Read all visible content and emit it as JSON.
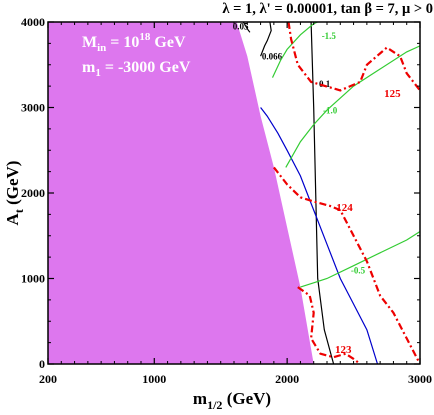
{
  "chart_data": {
    "type": "contour",
    "title": "λ = 1, λ' = 0.00001, tan β = 7, μ > 0",
    "xlabel": "m",
    "xlabel_sub": "1/2",
    "xlabel_unit": " (GeV)",
    "ylabel": "A",
    "ylabel_sub": "t",
    "ylabel_unit": " (GeV)",
    "xlim": [
      200,
      3000
    ],
    "ylim": [
      0,
      4000
    ],
    "x_ticks": [
      200,
      1000,
      2000,
      3000
    ],
    "y_ticks": [
      0,
      1000,
      2000,
      3000,
      4000
    ],
    "x_tick_labels": [
      "200",
      "1000",
      "2000",
      "3000"
    ],
    "y_tick_labels": [
      "0",
      "1000",
      "2000",
      "3000",
      "4000"
    ],
    "annotations": {
      "min_label": "M",
      "min_sub": "in",
      "min_eq": " = 10",
      "min_exp": "18",
      "min_unit": " GeV",
      "m1_label": "m",
      "m1_sub": "1",
      "m1_value": " = -3000 GeV"
    },
    "excluded_region": {
      "color": "#dd77ee",
      "boundary": [
        [
          200,
          0
        ],
        [
          200,
          4000
        ],
        [
          1620,
          4000
        ],
        [
          1700,
          3600
        ],
        [
          1800,
          2900
        ],
        [
          1900,
          2300
        ],
        [
          2000,
          1600
        ],
        [
          2100,
          900
        ],
        [
          2200,
          0
        ]
      ]
    },
    "series": [
      {
        "name": "0.05",
        "label": "0.05",
        "color": "#000000",
        "style": "solid",
        "points": [
          [
            1670,
            4000
          ],
          [
            1700,
            3920
          ],
          [
            1720,
            3880
          ]
        ],
        "label_at": [
          1590,
          3910
        ]
      },
      {
        "name": "0.066",
        "label": "0.066",
        "color": "#000000",
        "style": "solid",
        "points": [
          [
            1870,
            4000
          ],
          [
            1880,
            3900
          ],
          [
            1850,
            3780
          ],
          [
            1830,
            3720
          ],
          [
            1800,
            3600
          ]
        ],
        "label_at": [
          1810,
          3560
        ]
      },
      {
        "name": "0.1",
        "label": "0.1",
        "color": "#000000",
        "style": "solid",
        "points": [
          [
            2180,
            4000
          ],
          [
            2200,
            3000
          ],
          [
            2215,
            2000
          ],
          [
            2230,
            1000
          ],
          [
            2280,
            400
          ],
          [
            2350,
            0
          ]
        ],
        "label_at": [
          2240,
          3240
        ]
      },
      {
        "name": "blue",
        "label": "",
        "color": "#0000cc",
        "style": "solid",
        "points": [
          [
            1800,
            3000
          ],
          [
            1850,
            2900
          ],
          [
            1930,
            2700
          ],
          [
            2000,
            2500
          ],
          [
            2100,
            2200
          ],
          [
            2200,
            1800
          ],
          [
            2300,
            1400
          ],
          [
            2400,
            1000
          ],
          [
            2500,
            700
          ],
          [
            2600,
            400
          ],
          [
            2680,
            0
          ]
        ],
        "label_at": null
      },
      {
        "name": "-1.5",
        "label": "-1.5",
        "color": "#33cc33",
        "style": "solid",
        "points": [
          [
            1890,
            3350
          ],
          [
            1950,
            3550
          ],
          [
            2000,
            3680
          ],
          [
            2100,
            3850
          ],
          [
            2200,
            3980
          ],
          [
            2230,
            4000
          ]
        ],
        "label_at": [
          2260,
          3800
        ]
      },
      {
        "name": "-1.0",
        "label": "-1.0",
        "color": "#33cc33",
        "style": "solid",
        "points": [
          [
            1990,
            2300
          ],
          [
            2100,
            2600
          ],
          [
            2200,
            2800
          ],
          [
            2300,
            2970
          ],
          [
            2500,
            3250
          ],
          [
            2700,
            3450
          ],
          [
            2900,
            3650
          ],
          [
            3000,
            3720
          ]
        ],
        "label_at": [
          2270,
          2930
        ]
      },
      {
        "name": "-0.5",
        "label": "-0.5",
        "color": "#33cc33",
        "style": "solid",
        "points": [
          [
            2100,
            900
          ],
          [
            2200,
            950
          ],
          [
            2300,
            1000
          ],
          [
            2500,
            1150
          ],
          [
            2700,
            1300
          ],
          [
            2900,
            1450
          ],
          [
            3000,
            1550
          ]
        ],
        "label_at": [
          2480,
          1060
        ]
      },
      {
        "name": "125",
        "label": "125",
        "color": "#ee0000",
        "style": "dashdot",
        "points": [
          [
            2010,
            4000
          ],
          [
            2030,
            3800
          ],
          [
            2080,
            3500
          ],
          [
            2180,
            3300
          ],
          [
            2400,
            3200
          ],
          [
            2550,
            3300
          ],
          [
            2600,
            3500
          ],
          [
            2750,
            3700
          ],
          [
            2850,
            3600
          ],
          [
            2900,
            3400
          ],
          [
            2950,
            3300
          ],
          [
            3000,
            3200
          ]
        ],
        "label_at": [
          2730,
          3120
        ]
      },
      {
        "name": "124",
        "label": "124",
        "color": "#ee0000",
        "style": "dashdot",
        "points": [
          [
            1900,
            2300
          ],
          [
            2000,
            2100
          ],
          [
            2100,
            1950
          ],
          [
            2200,
            1900
          ],
          [
            2320,
            1850
          ],
          [
            2400,
            1800
          ],
          [
            2500,
            1500
          ],
          [
            2600,
            1200
          ],
          [
            2700,
            800
          ],
          [
            2800,
            600
          ],
          [
            2900,
            300
          ],
          [
            3000,
            0
          ]
        ],
        "label_at": [
          2370,
          1790
        ]
      },
      {
        "name": "123",
        "label": "123",
        "color": "#ee0000",
        "style": "dashdot",
        "points": [
          [
            2080,
            900
          ],
          [
            2170,
            800
          ],
          [
            2200,
            600
          ],
          [
            2180,
            300
          ],
          [
            2250,
            120
          ],
          [
            2350,
            80
          ],
          [
            2440,
            120
          ],
          [
            2500,
            60
          ],
          [
            2550,
            0
          ]
        ],
        "label_at": [
          2360,
          130
        ]
      }
    ]
  }
}
